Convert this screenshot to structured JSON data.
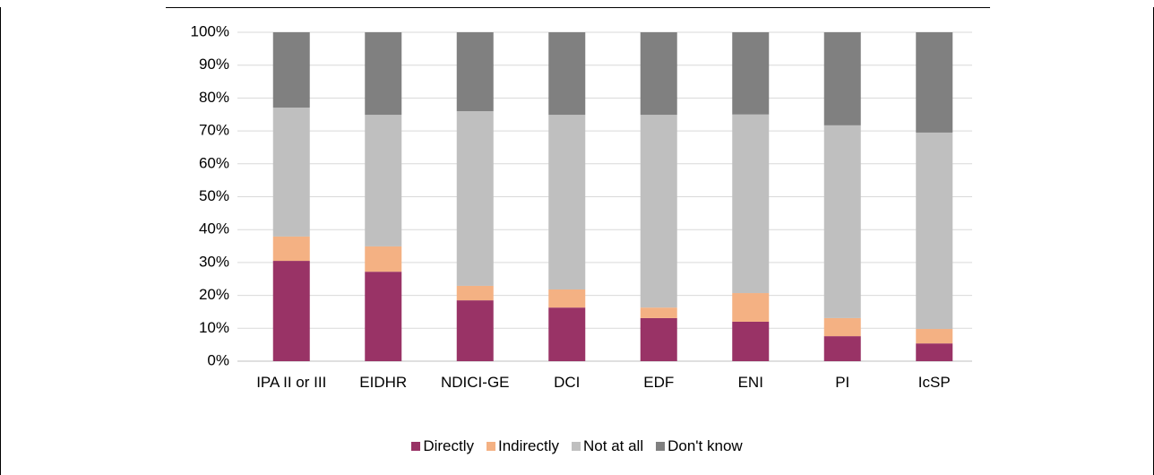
{
  "chart_data": {
    "type": "stacked_bar",
    "categories": [
      "IPA II or III",
      "EIDHR",
      "NDICI-GE",
      "DCI",
      "EDF",
      "ENI",
      "PI",
      "IcSP"
    ],
    "series": [
      {
        "name": "Directly",
        "color": "#993366",
        "values": [
          30.5,
          27.2,
          18.5,
          16.3,
          13.1,
          12.0,
          7.6,
          5.4
        ]
      },
      {
        "name": "Indirectly",
        "color": "#f4b183",
        "values": [
          7.4,
          7.7,
          4.4,
          5.5,
          3.2,
          8.7,
          5.5,
          4.4
        ]
      },
      {
        "name": "Not at all",
        "color": "#bfbfbf",
        "values": [
          39.2,
          40.0,
          53.1,
          53.1,
          58.6,
          54.3,
          58.6,
          59.7
        ]
      },
      {
        "name": "Don't know",
        "color": "#808080",
        "values": [
          22.9,
          25.1,
          24.0,
          25.1,
          25.1,
          25.0,
          28.3,
          30.5
        ]
      }
    ],
    "ylim": [
      0,
      100
    ],
    "yticks": [
      {
        "value": 0,
        "label": "0%"
      },
      {
        "value": 10,
        "label": "10%"
      },
      {
        "value": 20,
        "label": "20%"
      },
      {
        "value": 30,
        "label": "30%"
      },
      {
        "value": 40,
        "label": "40%"
      },
      {
        "value": 50,
        "label": "50%"
      },
      {
        "value": 60,
        "label": "60%"
      },
      {
        "value": 70,
        "label": "70%"
      },
      {
        "value": 80,
        "label": "80%"
      },
      {
        "value": 90,
        "label": "90%"
      },
      {
        "value": 100,
        "label": "100%"
      }
    ],
    "grid": true,
    "legend": "bottom"
  }
}
